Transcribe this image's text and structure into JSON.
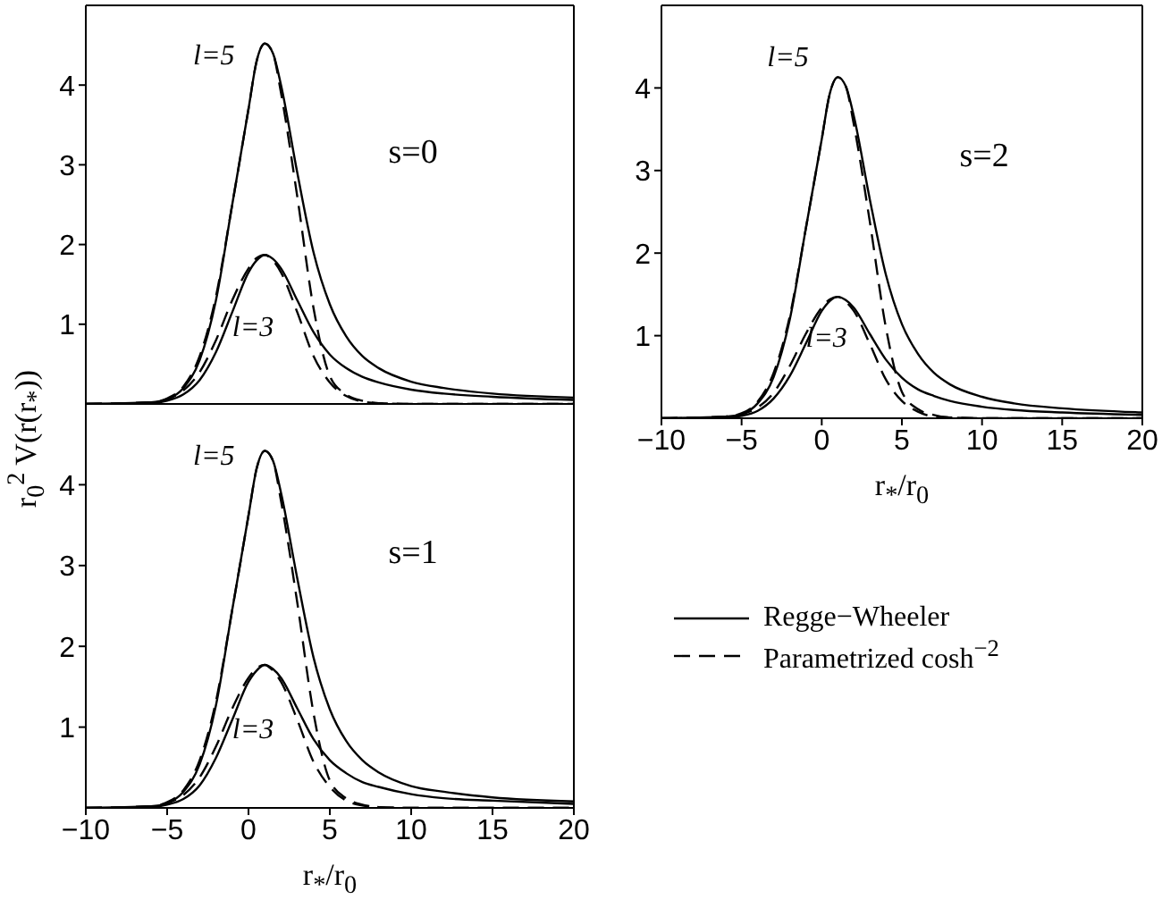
{
  "chart_data": [
    {
      "type": "line",
      "ylabel": "r$_{0}$$^{2}$ V(r(r$_{*}$))",
      "annotations": [
        "s=0",
        "l=5",
        "l=3"
      ],
      "x": [
        -10,
        -6,
        -5,
        -4,
        -3,
        -2,
        -1,
        0,
        0.5,
        1,
        1.5,
        2,
        3,
        4,
        5,
        6,
        7,
        8,
        10,
        12,
        15,
        20
      ],
      "xlim": [
        -10,
        20
      ],
      "xticks": [
        -10,
        -5,
        0,
        5,
        10,
        15,
        20
      ],
      "ylim": [
        0,
        5
      ],
      "yticks": [
        1,
        2,
        3,
        4
      ],
      "tick_labels": "y",
      "legend": false,
      "series": [
        {
          "color": "#000000",
          "line_style": "solid",
          "values": [
            0,
            0.02,
            0.06,
            0.2,
            0.55,
            1.3,
            2.5,
            3.7,
            4.3,
            4.52,
            4.4,
            4.0,
            2.9,
            1.9,
            1.25,
            0.85,
            0.6,
            0.45,
            0.28,
            0.2,
            0.13,
            0.08
          ]
        },
        {
          "color": "#000000",
          "line_style": "dashed",
          "values": [
            0,
            0.02,
            0.07,
            0.22,
            0.6,
            1.35,
            2.5,
            3.7,
            4.3,
            4.52,
            4.4,
            3.9,
            2.6,
            1.2,
            0.35,
            0.12,
            0.04,
            0.01,
            0,
            0,
            0,
            0
          ]
        },
        {
          "color": "#000000",
          "line_style": "solid",
          "values": [
            0,
            0.01,
            0.04,
            0.12,
            0.3,
            0.65,
            1.15,
            1.65,
            1.8,
            1.87,
            1.82,
            1.7,
            1.3,
            0.9,
            0.62,
            0.45,
            0.34,
            0.27,
            0.18,
            0.13,
            0.09,
            0.05
          ]
        },
        {
          "color": "#000000",
          "line_style": "dashed",
          "values": [
            0,
            0.02,
            0.06,
            0.17,
            0.4,
            0.8,
            1.3,
            1.7,
            1.83,
            1.87,
            1.8,
            1.65,
            1.15,
            0.6,
            0.27,
            0.1,
            0.03,
            0.01,
            0,
            0,
            0,
            0
          ]
        }
      ]
    },
    {
      "type": "line",
      "xlabel": "r$_{*}$/r$_{0}$",
      "annotations": [
        "s=2",
        "l=5",
        "l=3"
      ],
      "x": [
        -10,
        -6,
        -5,
        -4,
        -3,
        -2,
        -1,
        0,
        0.5,
        1,
        1.5,
        2,
        3,
        4,
        5,
        6,
        7,
        8,
        10,
        12,
        15,
        20
      ],
      "xlim": [
        -10,
        20
      ],
      "xticks": [
        -10,
        -5,
        0,
        5,
        10,
        15,
        20
      ],
      "ylim": [
        0,
        5
      ],
      "yticks": [
        1,
        2,
        3,
        4
      ],
      "legend": "bottom",
      "series": [
        {
          "name": "Regge−Wheeler",
          "color": "#000000",
          "line_style": "solid",
          "values": [
            0,
            0.02,
            0.05,
            0.18,
            0.5,
            1.19,
            2.29,
            3.38,
            3.93,
            4.13,
            4.02,
            3.66,
            2.65,
            1.74,
            1.14,
            0.78,
            0.55,
            0.41,
            0.26,
            0.18,
            0.12,
            0.07
          ]
        },
        {
          "name": "Parametrized cosh$^{−2}$",
          "color": "#000000",
          "line_style": "dashed",
          "values": [
            0,
            0.02,
            0.06,
            0.2,
            0.55,
            1.23,
            2.29,
            3.38,
            3.93,
            4.13,
            4.02,
            3.56,
            2.38,
            1.1,
            0.32,
            0.11,
            0.04,
            0.01,
            0,
            0,
            0,
            0
          ]
        },
        {
          "color": "#000000",
          "line_style": "solid",
          "values": [
            0,
            0.01,
            0.03,
            0.09,
            0.24,
            0.51,
            0.9,
            1.3,
            1.42,
            1.47,
            1.43,
            1.34,
            1.02,
            0.71,
            0.49,
            0.35,
            0.27,
            0.21,
            0.14,
            0.1,
            0.07,
            0.04
          ]
        },
        {
          "color": "#000000",
          "line_style": "dashed",
          "values": [
            0,
            0.02,
            0.05,
            0.13,
            0.31,
            0.63,
            1.02,
            1.34,
            1.44,
            1.47,
            1.41,
            1.3,
            0.9,
            0.47,
            0.21,
            0.08,
            0.02,
            0.01,
            0,
            0,
            0,
            0
          ]
        }
      ]
    },
    {
      "type": "line",
      "xlabel": "r$_{*}$/r$_{0}$",
      "annotations": [
        "s=1",
        "l=5",
        "l=3"
      ],
      "x": [
        -10,
        -6,
        -5,
        -4,
        -3,
        -2,
        -1,
        0,
        0.5,
        1,
        1.5,
        2,
        3,
        4,
        5,
        6,
        7,
        8,
        10,
        12,
        15,
        20
      ],
      "xlim": [
        -10,
        20
      ],
      "xticks": [
        -10,
        -5,
        0,
        5,
        10,
        15,
        20
      ],
      "ylim": [
        0,
        5
      ],
      "yticks": [
        1,
        2,
        3,
        4
      ],
      "legend": false,
      "series": [
        {
          "color": "#000000",
          "line_style": "solid",
          "values": [
            0,
            0.02,
            0.06,
            0.2,
            0.54,
            1.27,
            2.45,
            3.62,
            4.2,
            4.42,
            4.3,
            3.9,
            2.84,
            1.86,
            1.22,
            0.83,
            0.59,
            0.44,
            0.27,
            0.2,
            0.13,
            0.08
          ]
        },
        {
          "color": "#000000",
          "line_style": "dashed",
          "values": [
            0,
            0.02,
            0.07,
            0.22,
            0.59,
            1.32,
            2.45,
            3.62,
            4.2,
            4.42,
            4.3,
            3.8,
            2.54,
            1.17,
            0.34,
            0.12,
            0.04,
            0.01,
            0,
            0,
            0,
            0
          ]
        },
        {
          "color": "#000000",
          "line_style": "solid",
          "values": [
            0,
            0.01,
            0.04,
            0.11,
            0.28,
            0.62,
            1.09,
            1.56,
            1.7,
            1.77,
            1.72,
            1.61,
            1.23,
            0.85,
            0.59,
            0.43,
            0.32,
            0.26,
            0.17,
            0.12,
            0.09,
            0.05
          ]
        },
        {
          "color": "#000000",
          "line_style": "dashed",
          "values": [
            0,
            0.02,
            0.06,
            0.16,
            0.38,
            0.76,
            1.23,
            1.61,
            1.73,
            1.77,
            1.7,
            1.56,
            1.09,
            0.57,
            0.26,
            0.09,
            0.03,
            0.01,
            0,
            0,
            0,
            0
          ]
        }
      ]
    }
  ]
}
